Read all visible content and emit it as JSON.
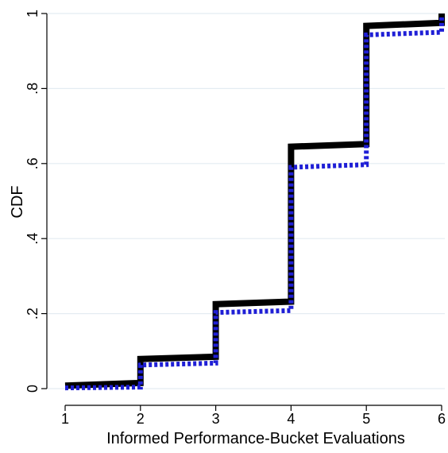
{
  "chart_data": {
    "type": "line",
    "title": "",
    "xlabel": "Informed Performance-Bucket Evaluations",
    "ylabel": "CDF",
    "xlim": [
      1,
      6
    ],
    "ylim": [
      0,
      1
    ],
    "x_ticks": [
      1,
      2,
      3,
      4,
      5,
      6
    ],
    "x_tick_labels": [
      "1",
      "2",
      "3",
      "4",
      "5",
      "6"
    ],
    "y_ticks": [
      0,
      0.2,
      0.4,
      0.6,
      0.8,
      1
    ],
    "y_tick_labels": [
      "0",
      ".2",
      ".4",
      ".6",
      ".8",
      "1"
    ],
    "grid": true,
    "legend": "none",
    "series": [
      {
        "step": true,
        "style": "solid",
        "color": "#000000",
        "points": [
          {
            "x": 1,
            "y": 0.008
          },
          {
            "x": 2,
            "y": 0.015
          },
          {
            "x": 2,
            "y": 0.079
          },
          {
            "x": 3,
            "y": 0.085
          },
          {
            "x": 3,
            "y": 0.225
          },
          {
            "x": 4,
            "y": 0.232
          },
          {
            "x": 4,
            "y": 0.645
          },
          {
            "x": 5,
            "y": 0.652
          },
          {
            "x": 5,
            "y": 0.967
          },
          {
            "x": 6,
            "y": 0.975
          },
          {
            "x": 6,
            "y": 1.0
          }
        ]
      },
      {
        "step": true,
        "style": "dashed",
        "color": "#1f1fd6",
        "points": [
          {
            "x": 1,
            "y": 0.002
          },
          {
            "x": 2,
            "y": 0.004
          },
          {
            "x": 2,
            "y": 0.063
          },
          {
            "x": 3,
            "y": 0.068
          },
          {
            "x": 3,
            "y": 0.203
          },
          {
            "x": 4,
            "y": 0.208
          },
          {
            "x": 4,
            "y": 0.59
          },
          {
            "x": 5,
            "y": 0.597
          },
          {
            "x": 5,
            "y": 0.943
          },
          {
            "x": 6,
            "y": 0.95
          },
          {
            "x": 6,
            "y": 0.993
          }
        ]
      }
    ]
  }
}
